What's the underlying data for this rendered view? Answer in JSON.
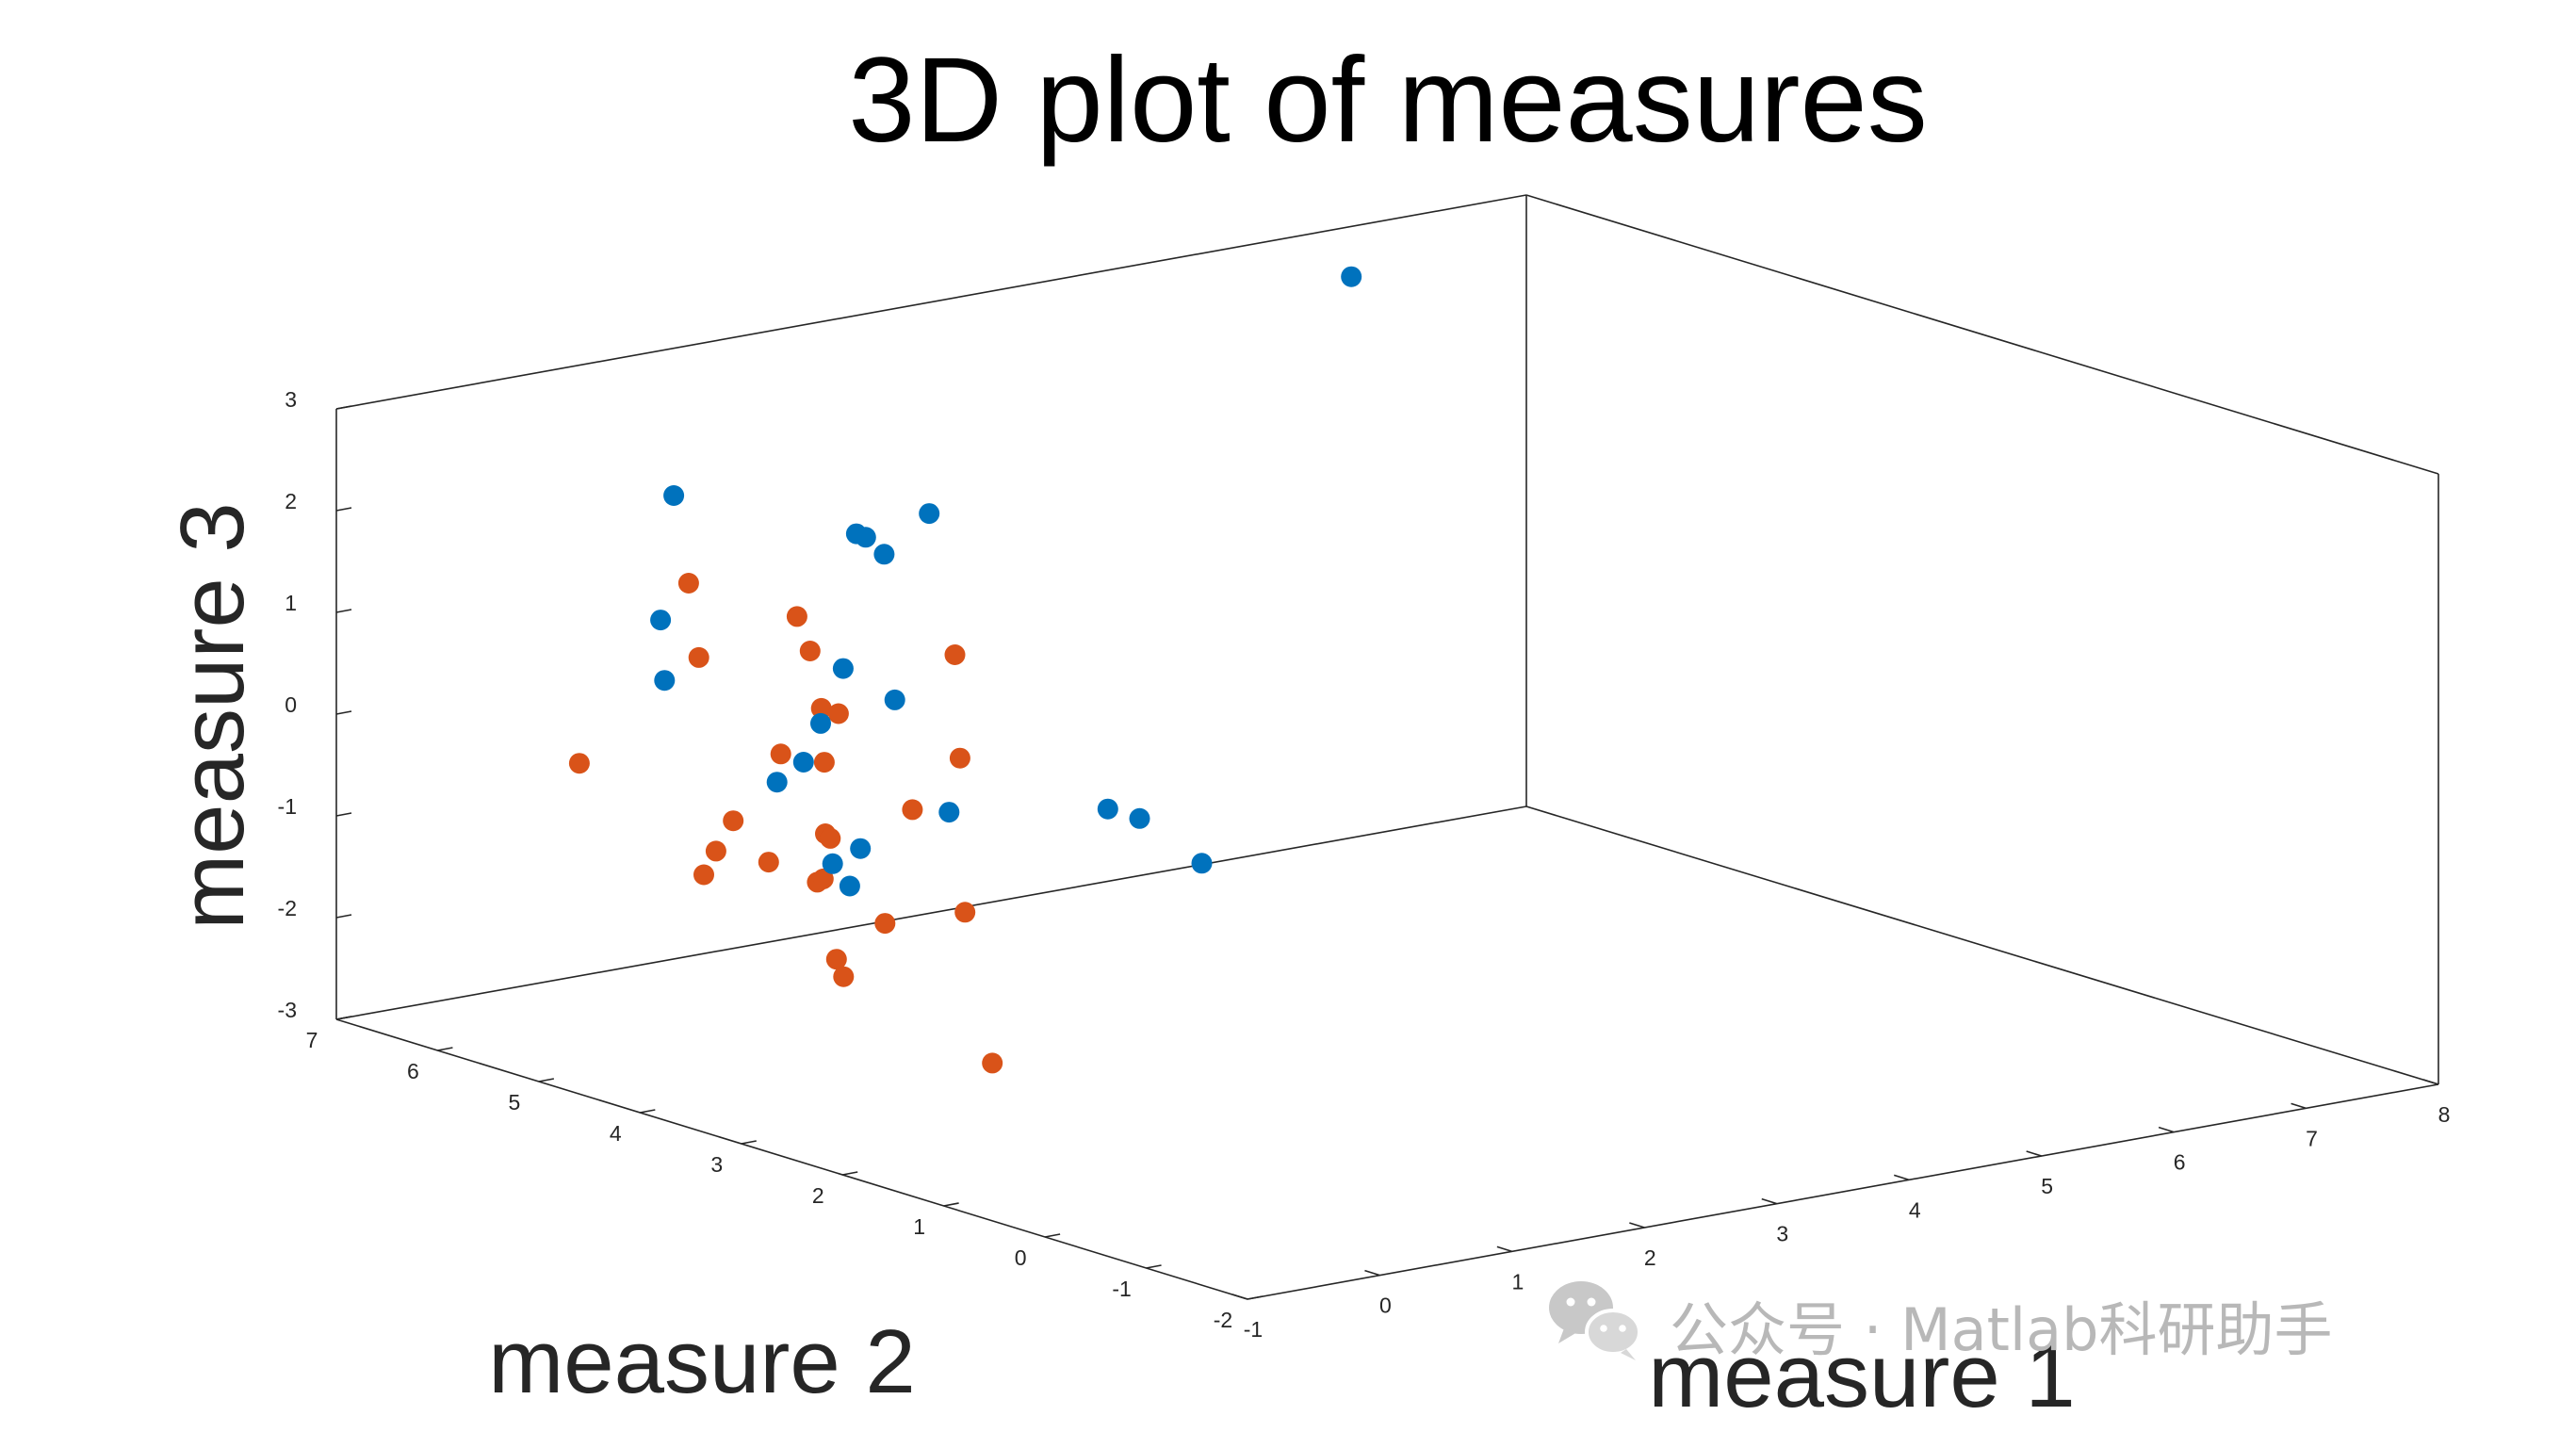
{
  "chart_data": {
    "type": "scatter",
    "title": "3D plot of measures",
    "xlabel": "measure 1",
    "ylabel": "measure 2",
    "zlabel": "measure 3",
    "xlim": [
      -1,
      8
    ],
    "ylim": [
      -2,
      7
    ],
    "zlim": [
      -3,
      3
    ],
    "xticks": [
      "-1",
      "0",
      "1",
      "2",
      "3",
      "4",
      "5",
      "6",
      "7",
      "8"
    ],
    "yticks": [
      "-2",
      "-1",
      "0",
      "1",
      "2",
      "3",
      "4",
      "5",
      "6",
      "7"
    ],
    "zticks": [
      "-3",
      "-2",
      "-1",
      "0",
      "1",
      "2",
      "3"
    ],
    "grid": false,
    "series": [
      {
        "color": "#D95319",
        "points": [
          [
            -1.0,
            4.6,
            0.25
          ],
          [
            -1.0,
            3.52,
            2.35
          ],
          [
            -1.0,
            3.37,
            -0.47
          ],
          [
            -1.0,
            3.42,
            1.65
          ],
          [
            -1.0,
            3.25,
            -0.2
          ],
          [
            -1.0,
            3.08,
            0.15
          ],
          [
            -1.0,
            2.73,
            -0.15
          ],
          [
            -1.0,
            2.61,
            0.95
          ],
          [
            -1.0,
            2.45,
            2.35
          ],
          [
            -1.0,
            2.32,
            2.05
          ],
          [
            -1.0,
            2.21,
            1.52
          ],
          [
            -1.0,
            2.17,
            0.3
          ],
          [
            -1.0,
            2.25,
            -0.2
          ],
          [
            -1.0,
            2.18,
            1.0
          ],
          [
            -1.0,
            2.19,
            -0.15
          ],
          [
            -1.0,
            2.12,
            0.27
          ],
          [
            -1.0,
            2.04,
            1.52
          ],
          [
            -1.0,
            2.06,
            -0.9
          ],
          [
            -1.0,
            1.99,
            -1.05
          ],
          [
            -1.0,
            1.58,
            -0.4
          ],
          [
            -1.0,
            1.31,
            0.8
          ],
          [
            -1.0,
            0.89,
            2.45
          ],
          [
            -1.0,
            0.79,
            -0.05
          ],
          [
            -1.0,
            0.84,
            1.45
          ],
          [
            -1.0,
            0.52,
            -1.45
          ]
        ]
      },
      {
        "color": "#0072BD",
        "points": [
          [
            1.55,
            7.0,
            1.55
          ],
          [
            1.45,
            7.0,
            0.35
          ],
          [
            1.48,
            7.0,
            -0.25
          ],
          [
            2.33,
            7.0,
            -1.45
          ],
          [
            2.53,
            7.0,
            -1.3
          ],
          [
            2.66,
            7.0,
            -0.95
          ],
          [
            2.93,
            7.0,
            0.85
          ],
          [
            3.0,
            7.0,
            0.8
          ],
          [
            2.83,
            7.0,
            -0.45
          ],
          [
            3.14,
            7.0,
            0.6
          ],
          [
            3.22,
            7.0,
            -0.85
          ],
          [
            3.48,
            7.0,
            0.92
          ],
          [
            2.75,
            7.0,
            -2.35
          ],
          [
            2.96,
            7.0,
            -2.25
          ],
          [
            2.88,
            7.0,
            -2.6
          ],
          [
            3.63,
            7.0,
            -2.05
          ],
          [
            4.83,
            7.0,
            -2.3
          ],
          [
            5.07,
            7.0,
            -2.45
          ],
          [
            5.54,
            7.0,
            -3.0
          ],
          [
            6.67,
            7.0,
            2.5
          ]
        ]
      }
    ]
  },
  "watermark": {
    "text": "公众号 · Matlab科研助手"
  }
}
